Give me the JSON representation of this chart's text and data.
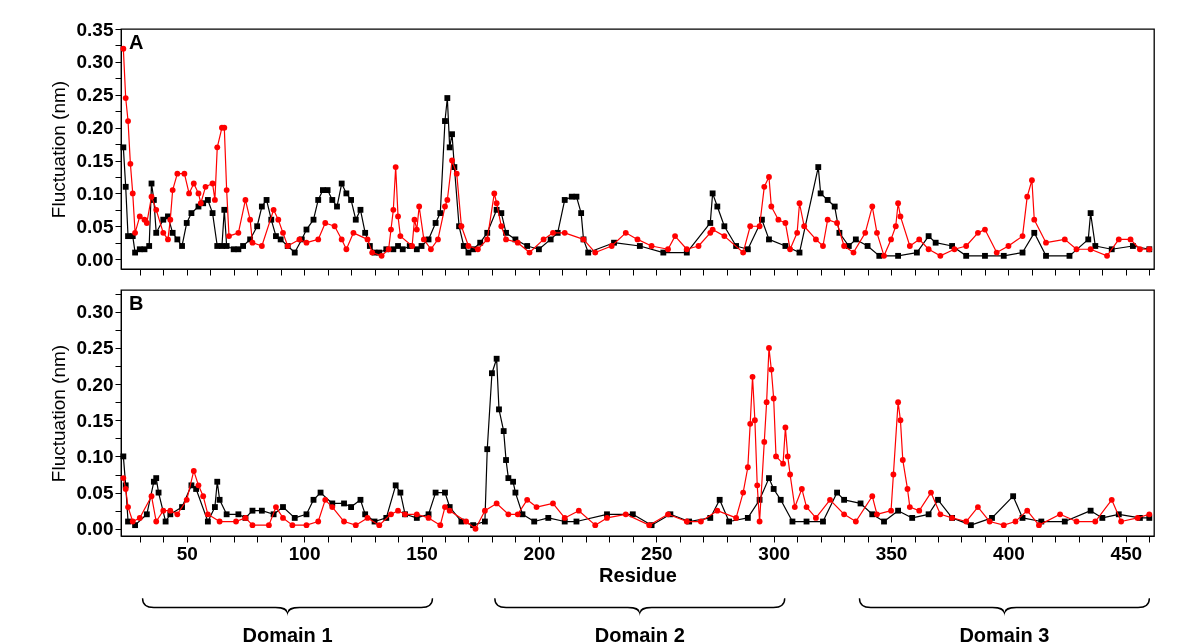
{
  "chart_data": [
    {
      "type": "line",
      "ylabel": "Fluctuation (nm)",
      "annotations": [
        "A"
      ],
      "xlim": [
        22,
        462
      ],
      "xticks": [
        {
          "value": 30,
          "label": null
        },
        {
          "value": 40,
          "label": null
        },
        50,
        {
          "value": 60,
          "label": null
        },
        {
          "value": 70,
          "label": null
        },
        {
          "value": 80,
          "label": null
        },
        {
          "value": 90,
          "label": null
        },
        100,
        {
          "value": 110,
          "label": null
        },
        {
          "value": 120,
          "label": null
        },
        {
          "value": 130,
          "label": null
        },
        {
          "value": 140,
          "label": null
        },
        150,
        {
          "value": 160,
          "label": null
        },
        {
          "value": 170,
          "label": null
        },
        {
          "value": 180,
          "label": null
        },
        {
          "value": 190,
          "label": null
        },
        200,
        {
          "value": 210,
          "label": null
        },
        {
          "value": 220,
          "label": null
        },
        {
          "value": 230,
          "label": null
        },
        {
          "value": 240,
          "label": null
        },
        250,
        {
          "value": 260,
          "label": null
        },
        {
          "value": 270,
          "label": null
        },
        {
          "value": 280,
          "label": null
        },
        {
          "value": 290,
          "label": null
        },
        300,
        {
          "value": 310,
          "label": null
        },
        {
          "value": 320,
          "label": null
        },
        {
          "value": 330,
          "label": null
        },
        {
          "value": 340,
          "label": null
        },
        350,
        {
          "value": 360,
          "label": null
        },
        {
          "value": 370,
          "label": null
        },
        {
          "value": 380,
          "label": null
        },
        {
          "value": 390,
          "label": null
        },
        400,
        {
          "value": 410,
          "label": null
        },
        {
          "value": 420,
          "label": null
        },
        {
          "value": 430,
          "label": null
        },
        {
          "value": 440,
          "label": null
        },
        450,
        {
          "value": 460,
          "label": null
        }
      ],
      "ylim": [
        -0.015,
        0.35
      ],
      "yticks": [
        {
          "value": 0,
          "label": "0.00"
        },
        {
          "value": 0.025,
          "label": null
        },
        {
          "value": 0.05,
          "label": "0.05"
        },
        {
          "value": 0.075,
          "label": null
        },
        {
          "value": 0.1,
          "label": "0.10"
        },
        {
          "value": 0.125,
          "label": null
        },
        {
          "value": 0.15,
          "label": "0.15"
        },
        {
          "value": 0.175,
          "label": null
        },
        {
          "value": 0.2,
          "label": "0.20"
        },
        {
          "value": 0.225,
          "label": null
        },
        {
          "value": 0.25,
          "label": "0.25"
        },
        {
          "value": 0.275,
          "label": null
        },
        {
          "value": 0.3,
          "label": "0.30"
        },
        {
          "value": 0.325,
          "label": null
        },
        {
          "value": 0.35,
          "label": "0.35"
        }
      ],
      "tick_labels": "y",
      "grid": false,
      "line_style": "solid",
      "series": [
        {
          "color": "#000000",
          "marker": "square",
          "x": [
            23,
            24,
            25,
            27,
            28,
            30,
            32,
            34,
            35,
            36,
            37,
            40,
            42,
            44,
            46,
            48,
            50,
            52,
            55,
            57,
            59,
            61,
            63,
            65,
            66,
            67,
            70,
            72,
            74,
            77,
            80,
            82,
            84,
            86,
            88,
            90,
            93,
            96,
            99,
            101,
            104,
            106,
            108,
            110,
            112,
            114,
            116,
            118,
            120,
            122,
            124,
            126,
            128,
            130,
            132,
            135,
            138,
            140,
            142,
            145,
            148,
            150,
            153,
            156,
            158,
            160,
            161,
            162,
            163,
            164,
            166,
            168,
            170,
            172,
            175,
            178,
            182,
            184,
            186,
            190,
            195,
            200,
            205,
            208,
            211,
            214,
            216,
            218,
            219,
            221,
            232,
            243,
            253,
            263,
            273,
            274,
            276,
            279,
            284,
            289,
            295,
            298,
            305,
            311,
            319,
            320,
            323,
            326,
            328,
            332,
            335,
            340,
            345,
            353,
            361,
            366,
            369,
            376,
            382,
            390,
            398,
            406,
            411,
            416,
            426,
            434,
            435,
            437,
            444,
            453,
            460
          ],
          "values": [
            0.17,
            0.11,
            0.035,
            0.035,
            0.01,
            0.015,
            0.015,
            0.02,
            0.115,
            0.09,
            0.04,
            0.06,
            0.065,
            0.04,
            0.03,
            0.02,
            0.055,
            0.07,
            0.08,
            0.085,
            0.09,
            0.07,
            0.02,
            0.02,
            0.075,
            0.02,
            0.015,
            0.015,
            0.02,
            0.03,
            0.05,
            0.08,
            0.09,
            0.06,
            0.035,
            0.03,
            0.02,
            0.01,
            0.03,
            0.045,
            0.06,
            0.09,
            0.105,
            0.105,
            0.09,
            0.08,
            0.115,
            0.1,
            0.09,
            0.06,
            0.075,
            0.04,
            0.02,
            0.01,
            0.01,
            0.015,
            0.015,
            0.02,
            0.015,
            0.02,
            0.015,
            0.02,
            0.03,
            0.055,
            0.07,
            0.21,
            0.245,
            0.17,
            0.19,
            0.14,
            0.05,
            0.02,
            0.01,
            0.015,
            0.025,
            0.04,
            0.075,
            0.07,
            0.04,
            0.03,
            0.02,
            0.015,
            0.03,
            0.04,
            0.09,
            0.095,
            0.095,
            0.07,
            0.03,
            0.01,
            0.025,
            0.02,
            0.01,
            0.01,
            0.055,
            0.1,
            0.08,
            0.05,
            0.02,
            0.015,
            0.06,
            0.03,
            0.02,
            0.01,
            0.14,
            0.1,
            0.09,
            0.08,
            0.04,
            0.02,
            0.03,
            0.02,
            0.005,
            0.005,
            0.01,
            0.035,
            0.025,
            0.02,
            0.005,
            0.005,
            0.005,
            0.01,
            0.04,
            0.005,
            0.005,
            0.03,
            0.07,
            0.02,
            0.015,
            0.02,
            0.015
          ]
        },
        {
          "color": "#ff0000",
          "marker": "circle",
          "x": [
            23,
            24,
            25,
            26,
            27,
            28,
            30,
            32,
            33,
            35,
            37,
            40,
            42,
            43,
            44,
            46,
            49,
            51,
            53,
            55,
            56,
            58,
            61,
            62,
            63,
            65,
            66,
            67,
            68,
            72,
            75,
            77,
            78,
            82,
            87,
            89,
            91,
            93,
            98,
            101,
            106,
            109,
            113,
            116,
            118,
            121,
            127,
            129,
            133,
            136,
            137,
            138,
            139,
            140,
            141,
            146,
            147,
            148,
            149,
            151,
            154,
            157,
            160,
            161,
            163,
            165,
            167,
            170,
            174,
            178,
            181,
            182,
            184,
            186,
            191,
            196,
            202,
            206,
            211,
            219,
            224,
            231,
            237,
            242,
            248,
            255,
            258,
            263,
            268,
            273,
            274,
            279,
            287,
            290,
            294,
            296,
            298,
            299,
            302,
            305,
            307,
            310,
            311,
            313,
            318,
            321,
            323,
            327,
            330,
            334,
            339,
            342,
            344,
            347,
            350,
            352,
            353,
            354,
            358,
            362,
            366,
            371,
            377,
            382,
            387,
            390,
            395,
            400,
            406,
            408,
            410,
            411,
            416,
            424,
            429,
            435,
            442,
            447,
            452,
            456,
            460
          ],
          "values": [
            0.32,
            0.245,
            0.21,
            0.145,
            0.1,
            0.04,
            0.065,
            0.06,
            0.055,
            0.095,
            0.075,
            0.04,
            0.03,
            0.06,
            0.105,
            0.13,
            0.13,
            0.1,
            0.115,
            0.1,
            0.085,
            0.11,
            0.115,
            0.09,
            0.17,
            0.2,
            0.2,
            0.105,
            0.035,
            0.04,
            0.09,
            0.06,
            0.025,
            0.02,
            0.075,
            0.06,
            0.04,
            0.02,
            0.03,
            0.025,
            0.03,
            0.055,
            0.05,
            0.03,
            0.015,
            0.04,
            0.03,
            0.01,
            0.005,
            0.015,
            0.045,
            0.075,
            0.14,
            0.065,
            0.035,
            0.02,
            0.06,
            0.045,
            0.08,
            0.03,
            0.015,
            0.03,
            0.08,
            0.09,
            0.15,
            0.13,
            0.05,
            0.02,
            0.015,
            0.03,
            0.1,
            0.085,
            0.05,
            0.03,
            0.025,
            0.01,
            0.03,
            0.04,
            0.04,
            0.03,
            0.01,
            0.02,
            0.04,
            0.03,
            0.02,
            0.015,
            0.035,
            0.015,
            0.02,
            0.04,
            0.045,
            0.035,
            0.01,
            0.05,
            0.05,
            0.11,
            0.125,
            0.08,
            0.06,
            0.055,
            0.015,
            0.04,
            0.085,
            0.05,
            0.03,
            0.02,
            0.06,
            0.055,
            0.02,
            0.01,
            0.04,
            0.08,
            0.04,
            0.005,
            0.03,
            0.05,
            0.085,
            0.065,
            0.02,
            0.03,
            0.015,
            0.005,
            0.015,
            0.02,
            0.04,
            0.045,
            0.01,
            0.02,
            0.035,
            0.095,
            0.12,
            0.06,
            0.025,
            0.03,
            0.015,
            0.015,
            0.005,
            0.03,
            0.03,
            0.015,
            0.015
          ]
        }
      ]
    },
    {
      "type": "line",
      "xlabel": "Residue",
      "ylabel": "Fluctuation (nm)",
      "annotations": [
        "B",
        "Domain 1",
        "Domain 2",
        "Domain 3"
      ],
      "xlim": [
        22,
        462
      ],
      "xticks": [
        {
          "value": 30,
          "label": null
        },
        {
          "value": 40,
          "label": null
        },
        50,
        {
          "value": 60,
          "label": null
        },
        {
          "value": 70,
          "label": null
        },
        {
          "value": 80,
          "label": null
        },
        {
          "value": 90,
          "label": null
        },
        100,
        {
          "value": 110,
          "label": null
        },
        {
          "value": 120,
          "label": null
        },
        {
          "value": 130,
          "label": null
        },
        {
          "value": 140,
          "label": null
        },
        150,
        {
          "value": 160,
          "label": null
        },
        {
          "value": 170,
          "label": null
        },
        {
          "value": 180,
          "label": null
        },
        {
          "value": 190,
          "label": null
        },
        200,
        {
          "value": 210,
          "label": null
        },
        {
          "value": 220,
          "label": null
        },
        {
          "value": 230,
          "label": null
        },
        {
          "value": 240,
          "label": null
        },
        250,
        {
          "value": 260,
          "label": null
        },
        {
          "value": 270,
          "label": null
        },
        {
          "value": 280,
          "label": null
        },
        {
          "value": 290,
          "label": null
        },
        300,
        {
          "value": 310,
          "label": null
        },
        {
          "value": 320,
          "label": null
        },
        {
          "value": 330,
          "label": null
        },
        {
          "value": 340,
          "label": null
        },
        350,
        {
          "value": 360,
          "label": null
        },
        {
          "value": 370,
          "label": null
        },
        {
          "value": 380,
          "label": null
        },
        {
          "value": 390,
          "label": null
        },
        400,
        {
          "value": 410,
          "label": null
        },
        {
          "value": 420,
          "label": null
        },
        {
          "value": 430,
          "label": null
        },
        {
          "value": 440,
          "label": null
        },
        450,
        {
          "value": 460,
          "label": null
        }
      ],
      "ylim": [
        -0.01,
        0.33
      ],
      "yticks": [
        {
          "value": 0,
          "label": "0.00"
        },
        {
          "value": 0.025,
          "label": null
        },
        {
          "value": 0.05,
          "label": "0.05"
        },
        {
          "value": 0.075,
          "label": null
        },
        {
          "value": 0.1,
          "label": "0.10"
        },
        {
          "value": 0.125,
          "label": null
        },
        {
          "value": 0.15,
          "label": "0.15"
        },
        {
          "value": 0.175,
          "label": null
        },
        {
          "value": 0.2,
          "label": "0.20"
        },
        {
          "value": 0.225,
          "label": null
        },
        {
          "value": 0.25,
          "label": "0.25"
        },
        {
          "value": 0.275,
          "label": null
        },
        {
          "value": 0.3,
          "label": "0.30"
        },
        {
          "value": 0.325,
          "label": null
        }
      ],
      "grid": false,
      "line_style": "solid",
      "series": [
        {
          "color": "#000000",
          "marker": "square",
          "x": [
            23,
            24,
            25,
            28,
            33,
            36,
            37,
            38,
            41,
            43,
            48,
            52,
            54,
            59,
            62,
            63,
            64,
            67,
            72,
            75,
            78,
            82,
            87,
            91,
            96,
            101,
            104,
            107,
            112,
            117,
            120,
            124,
            126,
            130,
            135,
            139,
            141,
            143,
            148,
            153,
            156,
            160,
            162,
            167,
            172,
            177,
            178,
            180,
            182,
            183,
            185,
            186,
            187,
            189,
            190,
            193,
            198,
            204,
            211,
            216,
            229,
            240,
            248,
            256,
            264,
            273,
            277,
            281,
            289,
            294,
            298,
            300,
            303,
            308,
            314,
            321,
            327,
            330,
            337,
            342,
            347,
            353,
            359,
            366,
            370,
            376,
            384,
            393,
            402,
            406,
            414,
            424,
            435,
            440,
            447,
            456,
            460
          ],
          "values": [
            0.1,
            0.06,
            0.01,
            0.005,
            0.02,
            0.065,
            0.07,
            0.05,
            0.01,
            0.02,
            0.03,
            0.06,
            0.055,
            0.01,
            0.03,
            0.065,
            0.04,
            0.02,
            0.02,
            0.015,
            0.025,
            0.025,
            0.02,
            0.03,
            0.015,
            0.02,
            0.04,
            0.05,
            0.035,
            0.035,
            0.03,
            0.04,
            0.02,
            0.01,
            0.015,
            0.06,
            0.05,
            0.02,
            0.015,
            0.02,
            0.05,
            0.05,
            0.03,
            0.01,
            0.005,
            0.01,
            0.11,
            0.215,
            0.235,
            0.165,
            0.135,
            0.095,
            0.07,
            0.065,
            0.05,
            0.02,
            0.01,
            0.015,
            0.01,
            0.01,
            0.02,
            0.02,
            0.005,
            0.02,
            0.01,
            0.015,
            0.04,
            0.01,
            0.015,
            0.04,
            0.07,
            0.055,
            0.04,
            0.01,
            0.01,
            0.01,
            0.05,
            0.04,
            0.035,
            0.02,
            0.01,
            0.025,
            0.015,
            0.02,
            0.04,
            0.015,
            0.005,
            0.015,
            0.045,
            0.015,
            0.01,
            0.01,
            0.025,
            0.015,
            0.02,
            0.015,
            0.015
          ]
        },
        {
          "color": "#ff0000",
          "marker": "circle",
          "x": [
            23,
            24,
            25,
            27,
            30,
            35,
            37,
            40,
            43,
            46,
            50,
            53,
            55,
            57,
            59,
            64,
            71,
            75,
            78,
            85,
            88,
            91,
            95,
            101,
            106,
            109,
            112,
            117,
            122,
            127,
            132,
            137,
            140,
            143,
            148,
            153,
            158,
            160,
            162,
            169,
            173,
            177,
            182,
            187,
            191,
            195,
            199,
            206,
            211,
            217,
            224,
            229,
            237,
            247,
            255,
            263,
            269,
            276,
            284,
            287,
            289,
            290,
            291,
            292,
            293,
            294,
            296,
            297,
            298,
            299,
            300,
            301,
            304,
            305,
            306,
            307,
            309,
            312,
            314,
            318,
            324,
            330,
            335,
            342,
            344,
            350,
            351,
            353,
            354,
            355,
            357,
            358,
            362,
            367,
            371,
            376,
            382,
            387,
            392,
            398,
            403,
            408,
            413,
            422,
            429,
            437,
            444,
            448,
            455,
            460
          ],
          "values": [
            0.07,
            0.055,
            0.03,
            0.01,
            0.015,
            0.045,
            0.01,
            0.025,
            0.025,
            0.02,
            0.04,
            0.08,
            0.06,
            0.045,
            0.02,
            0.01,
            0.01,
            0.015,
            0.005,
            0.005,
            0.03,
            0.015,
            0.005,
            0.005,
            0.01,
            0.04,
            0.03,
            0.01,
            0.005,
            0.015,
            0.005,
            0.02,
            0.025,
            0.02,
            0.02,
            0.015,
            0.005,
            0.03,
            0.025,
            0.01,
            0,
            0.025,
            0.035,
            0.02,
            0.02,
            0.04,
            0.03,
            0.035,
            0.015,
            0.025,
            0.005,
            0.015,
            0.02,
            0.005,
            0.02,
            0.01,
            0.01,
            0.025,
            0.015,
            0.05,
            0.085,
            0.145,
            0.21,
            0.15,
            0.06,
            0.01,
            0.12,
            0.175,
            0.25,
            0.22,
            0.18,
            0.1,
            0.09,
            0.14,
            0.1,
            0.075,
            0.03,
            0.055,
            0.03,
            0.015,
            0.04,
            0.02,
            0.01,
            0.045,
            0.02,
            0.025,
            0.075,
            0.175,
            0.15,
            0.095,
            0.055,
            0.03,
            0.025,
            0.05,
            0.02,
            0.015,
            0.01,
            0.03,
            0.01,
            0.005,
            0.01,
            0.025,
            0.005,
            0.02,
            0.01,
            0.01,
            0.04,
            0.01,
            0.015,
            0.02
          ]
        }
      ]
    }
  ]
}
